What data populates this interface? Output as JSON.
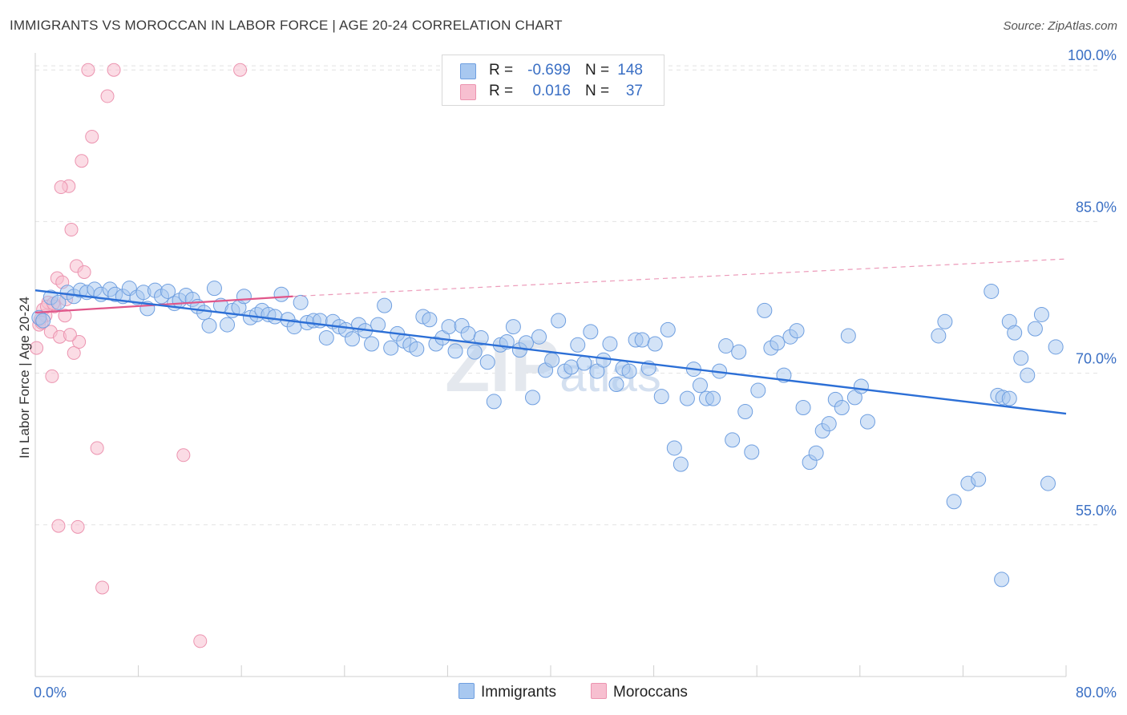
{
  "title": "IMMIGRANTS VS MOROCCAN IN LABOR FORCE | AGE 20-24 CORRELATION CHART",
  "source": "Source: ZipAtlas.com",
  "colors": {
    "immigrants_fill": "#a8c8f0",
    "immigrants_stroke": "#6f9fe0",
    "immigrants_line": "#2c6fd6",
    "moroccans_fill": "#f7bfd0",
    "moroccans_stroke": "#ec94b0",
    "moroccans_line": "#e0568a",
    "tick_text": "#3a6fc4",
    "grid": "#e2e2e2"
  },
  "legend": {
    "rows": [
      {
        "r_label": "R =",
        "r_value": "-0.699",
        "n_label": "N =",
        "n_value": "148"
      },
      {
        "r_label": "R =",
        "r_value": "0.016",
        "n_label": "N =",
        "n_value": "37"
      }
    ]
  },
  "bottom_legend": {
    "immigrants": "Immigrants",
    "moroccans": "Moroccans"
  },
  "chart_data": {
    "type": "scatter",
    "title": "IMMIGRANTS VS MOROCCAN IN LABOR FORCE | AGE 20-24 CORRELATION CHART",
    "xlabel": "",
    "ylabel": "In Labor Force | Age 20-24",
    "xlim": [
      0,
      80
    ],
    "ylim": [
      40,
      102
    ],
    "x_tick_labels": [
      "0.0%",
      "80.0%"
    ],
    "y_tick_values": [
      55,
      70,
      85,
      100
    ],
    "y_tick_labels": [
      "55.0%",
      "70.0%",
      "85.0%",
      "100.0%"
    ],
    "grid": true,
    "legend_position": "top-center",
    "watermark": "ZIPatlas",
    "series": [
      {
        "name": "Immigrants",
        "trend": {
          "x": [
            0,
            80
          ],
          "y": [
            78.2,
            66.0
          ],
          "style": "solid"
        },
        "points": [
          [
            0.3,
            75.5
          ],
          [
            0.6,
            75.2
          ],
          [
            1.2,
            77.5
          ],
          [
            1.8,
            77.0
          ],
          [
            2.5,
            78.0
          ],
          [
            3.0,
            77.6
          ],
          [
            3.5,
            78.2
          ],
          [
            4.0,
            78.0
          ],
          [
            4.6,
            78.3
          ],
          [
            5.1,
            77.8
          ],
          [
            5.8,
            78.3
          ],
          [
            6.2,
            77.8
          ],
          [
            6.8,
            77.6
          ],
          [
            7.3,
            78.4
          ],
          [
            7.9,
            77.5
          ],
          [
            8.4,
            78.0
          ],
          [
            8.7,
            76.4
          ],
          [
            9.3,
            78.2
          ],
          [
            9.8,
            77.6
          ],
          [
            10.3,
            78.1
          ],
          [
            10.8,
            76.9
          ],
          [
            11.2,
            77.2
          ],
          [
            11.7,
            77.7
          ],
          [
            12.2,
            77.3
          ],
          [
            12.6,
            76.6
          ],
          [
            13.1,
            76.0
          ],
          [
            13.5,
            74.7
          ],
          [
            13.9,
            78.4
          ],
          [
            14.4,
            76.7
          ],
          [
            14.9,
            74.8
          ],
          [
            15.3,
            76.2
          ],
          [
            15.8,
            76.5
          ],
          [
            16.2,
            77.6
          ],
          [
            16.7,
            75.5
          ],
          [
            17.2,
            75.8
          ],
          [
            17.6,
            76.2
          ],
          [
            18.1,
            75.8
          ],
          [
            18.6,
            75.6
          ],
          [
            19.1,
            77.8
          ],
          [
            19.6,
            75.3
          ],
          [
            20.1,
            74.6
          ],
          [
            20.6,
            77.0
          ],
          [
            21.1,
            75.0
          ],
          [
            21.6,
            75.2
          ],
          [
            22.1,
            75.2
          ],
          [
            22.6,
            73.5
          ],
          [
            23.1,
            75.1
          ],
          [
            23.6,
            74.6
          ],
          [
            24.1,
            74.3
          ],
          [
            24.6,
            73.4
          ],
          [
            25.1,
            74.8
          ],
          [
            25.6,
            74.2
          ],
          [
            26.1,
            72.9
          ],
          [
            26.6,
            74.8
          ],
          [
            27.1,
            76.7
          ],
          [
            27.6,
            72.5
          ],
          [
            28.1,
            73.9
          ],
          [
            28.6,
            73.2
          ],
          [
            29.1,
            72.8
          ],
          [
            29.6,
            72.4
          ],
          [
            30.1,
            75.6
          ],
          [
            30.6,
            75.3
          ],
          [
            31.1,
            72.9
          ],
          [
            31.6,
            73.5
          ],
          [
            32.1,
            74.6
          ],
          [
            32.6,
            72.2
          ],
          [
            33.1,
            74.7
          ],
          [
            33.6,
            73.9
          ],
          [
            34.1,
            72.1
          ],
          [
            34.6,
            73.5
          ],
          [
            35.1,
            71.1
          ],
          [
            35.6,
            67.2
          ],
          [
            36.1,
            72.8
          ],
          [
            36.6,
            73.1
          ],
          [
            37.1,
            74.6
          ],
          [
            37.6,
            72.3
          ],
          [
            38.1,
            73.0
          ],
          [
            38.6,
            67.6
          ],
          [
            39.1,
            73.6
          ],
          [
            39.6,
            70.3
          ],
          [
            40.1,
            71.3
          ],
          [
            40.6,
            75.2
          ],
          [
            41.1,
            70.2
          ],
          [
            41.6,
            70.6
          ],
          [
            42.1,
            72.8
          ],
          [
            42.6,
            71.0
          ],
          [
            43.1,
            74.1
          ],
          [
            43.6,
            70.2
          ],
          [
            44.1,
            71.3
          ],
          [
            44.6,
            72.9
          ],
          [
            45.1,
            68.9
          ],
          [
            45.6,
            70.5
          ],
          [
            46.1,
            70.2
          ],
          [
            46.6,
            73.3
          ],
          [
            47.1,
            73.3
          ],
          [
            47.6,
            70.5
          ],
          [
            48.1,
            72.9
          ],
          [
            48.6,
            67.7
          ],
          [
            49.1,
            74.3
          ],
          [
            49.6,
            62.6
          ],
          [
            50.1,
            61.0
          ],
          [
            50.6,
            67.5
          ],
          [
            51.1,
            70.4
          ],
          [
            51.6,
            68.8
          ],
          [
            52.1,
            67.5
          ],
          [
            52.6,
            67.5
          ],
          [
            53.1,
            70.2
          ],
          [
            53.6,
            72.7
          ],
          [
            54.1,
            63.4
          ],
          [
            54.6,
            72.1
          ],
          [
            55.1,
            66.2
          ],
          [
            55.6,
            62.2
          ],
          [
            56.1,
            68.3
          ],
          [
            56.6,
            76.2
          ],
          [
            57.1,
            72.5
          ],
          [
            57.6,
            73.0
          ],
          [
            58.1,
            69.8
          ],
          [
            58.6,
            73.6
          ],
          [
            59.1,
            74.2
          ],
          [
            59.6,
            66.6
          ],
          [
            60.1,
            61.2
          ],
          [
            60.6,
            62.1
          ],
          [
            61.1,
            64.3
          ],
          [
            61.6,
            65.0
          ],
          [
            62.1,
            67.4
          ],
          [
            62.6,
            66.6
          ],
          [
            63.1,
            73.7
          ],
          [
            63.6,
            67.6
          ],
          [
            64.1,
            68.7
          ],
          [
            64.6,
            65.2
          ],
          [
            70.1,
            73.7
          ],
          [
            70.6,
            75.1
          ],
          [
            71.3,
            57.3
          ],
          [
            72.4,
            59.1
          ],
          [
            73.2,
            59.5
          ],
          [
            74.2,
            78.1
          ],
          [
            74.7,
            67.8
          ],
          [
            75.1,
            67.6
          ],
          [
            75.6,
            75.1
          ],
          [
            76.0,
            74.0
          ],
          [
            76.5,
            71.5
          ],
          [
            77.0,
            69.8
          ],
          [
            77.6,
            74.4
          ],
          [
            78.1,
            75.8
          ],
          [
            78.6,
            59.1
          ],
          [
            79.2,
            72.6
          ],
          [
            75.0,
            49.6
          ],
          [
            75.6,
            67.5
          ]
        ]
      },
      {
        "name": "Moroccans",
        "trend": {
          "x": [
            0,
            20
          ],
          "y": [
            76.0,
            77.6
          ],
          "style": "solid",
          "extended_to": [
            80,
            81.3
          ],
          "extended_style": "dashed"
        },
        "points": [
          [
            0.1,
            72.5
          ],
          [
            0.3,
            74.8
          ],
          [
            0.4,
            75.3
          ],
          [
            0.6,
            76.3
          ],
          [
            0.8,
            75.7
          ],
          [
            1.0,
            77.0
          ],
          [
            1.2,
            74.1
          ],
          [
            1.3,
            69.7
          ],
          [
            1.5,
            76.6
          ],
          [
            1.7,
            79.4
          ],
          [
            1.9,
            73.6
          ],
          [
            2.1,
            79.0
          ],
          [
            2.3,
            75.7
          ],
          [
            2.6,
            88.5
          ],
          [
            2.8,
            84.2
          ],
          [
            3.0,
            72.0
          ],
          [
            3.2,
            80.6
          ],
          [
            3.4,
            73.1
          ],
          [
            3.6,
            91.0
          ],
          [
            3.8,
            80.0
          ],
          [
            4.1,
            100.0
          ],
          [
            4.4,
            93.4
          ],
          [
            4.8,
            62.6
          ],
          [
            5.2,
            48.8
          ],
          [
            5.6,
            97.4
          ],
          [
            6.1,
            100.0
          ],
          [
            2.0,
            88.4
          ],
          [
            2.4,
            77.3
          ],
          [
            3.3,
            54.8
          ],
          [
            1.8,
            54.9
          ],
          [
            11.5,
            61.9
          ],
          [
            12.8,
            43.5
          ],
          [
            15.9,
            100.0
          ],
          [
            0.9,
            76.6
          ],
          [
            1.4,
            76.9
          ],
          [
            2.7,
            73.8
          ],
          [
            0.5,
            75.0
          ]
        ]
      }
    ]
  }
}
